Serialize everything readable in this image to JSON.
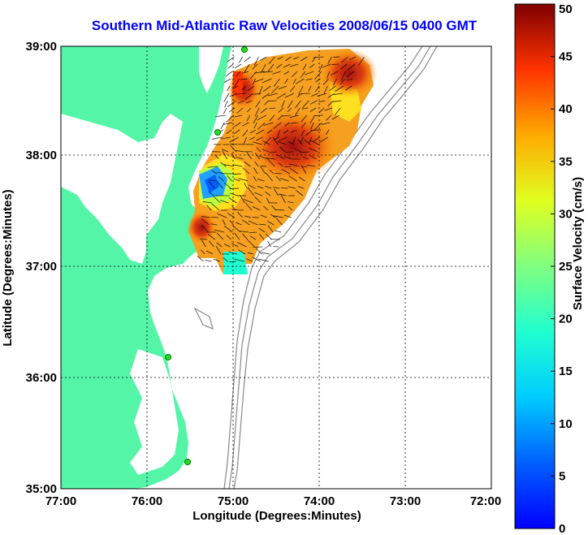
{
  "title": "Southern Mid-Atlantic Raw Velocities 2008/06/15 0400 GMT",
  "xlabel": "Longitude (Degrees:Minutes)",
  "ylabel": "Latitude (Degrees:Minutes)",
  "colorbar_label": "Surface Velocity (cm/s)",
  "x_ticks": [
    "77:00",
    "76:00",
    "75:00",
    "74:00",
    "73:00",
    "72:00"
  ],
  "y_ticks": [
    "39:00",
    "38:00",
    "37:00",
    "36:00",
    "35:00"
  ],
  "cbar_ticks": [
    "0",
    "5",
    "10",
    "15",
    "20",
    "25",
    "30",
    "35",
    "40",
    "45",
    "50"
  ],
  "cbar_range": [
    0,
    50
  ],
  "colors": {
    "land": "#55f5a8",
    "title": "#0000ff",
    "station": "#22dd22"
  }
}
